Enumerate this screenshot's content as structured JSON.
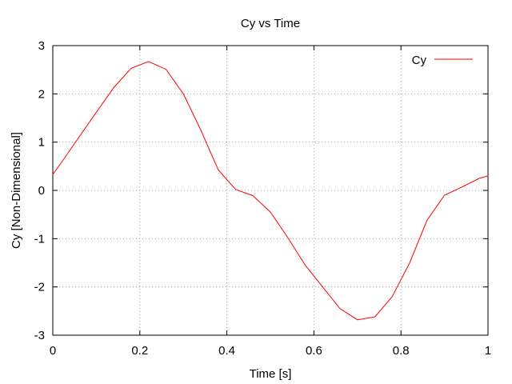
{
  "chart_data": {
    "type": "line",
    "title": "Cy vs Time",
    "xlabel": "Time [s]",
    "ylabel": "Cy [Non-Dimensional]",
    "xlim": [
      0,
      1
    ],
    "ylim": [
      -3,
      3
    ],
    "xticks": [
      0,
      0.2,
      0.4,
      0.6,
      0.8,
      1
    ],
    "xtick_labels": [
      "0",
      "0.2",
      "0.4",
      "0.6",
      "0.8",
      "1"
    ],
    "yticks": [
      -3,
      -2,
      -1,
      0,
      1,
      2,
      3
    ],
    "ytick_labels": [
      "-3",
      "-2",
      "-1",
      "0",
      "1",
      "2",
      "3"
    ],
    "grid": true,
    "legend_position": "top-right",
    "series": [
      {
        "name": "Cy",
        "color": "#ff0000",
        "x": [
          0,
          0.02,
          0.06,
          0.1,
          0.14,
          0.18,
          0.22,
          0.26,
          0.3,
          0.34,
          0.38,
          0.42,
          0.46,
          0.5,
          0.54,
          0.58,
          0.62,
          0.66,
          0.7,
          0.74,
          0.78,
          0.82,
          0.86,
          0.9,
          0.94,
          0.98,
          1.0
        ],
        "values": [
          0.33,
          0.58,
          1.1,
          1.62,
          2.13,
          2.53,
          2.67,
          2.51,
          2.0,
          1.25,
          0.43,
          0.02,
          -0.11,
          -0.45,
          -0.98,
          -1.55,
          -2.0,
          -2.45,
          -2.68,
          -2.62,
          -2.2,
          -1.5,
          -0.62,
          -0.1,
          0.07,
          0.25,
          0.3
        ]
      }
    ]
  }
}
